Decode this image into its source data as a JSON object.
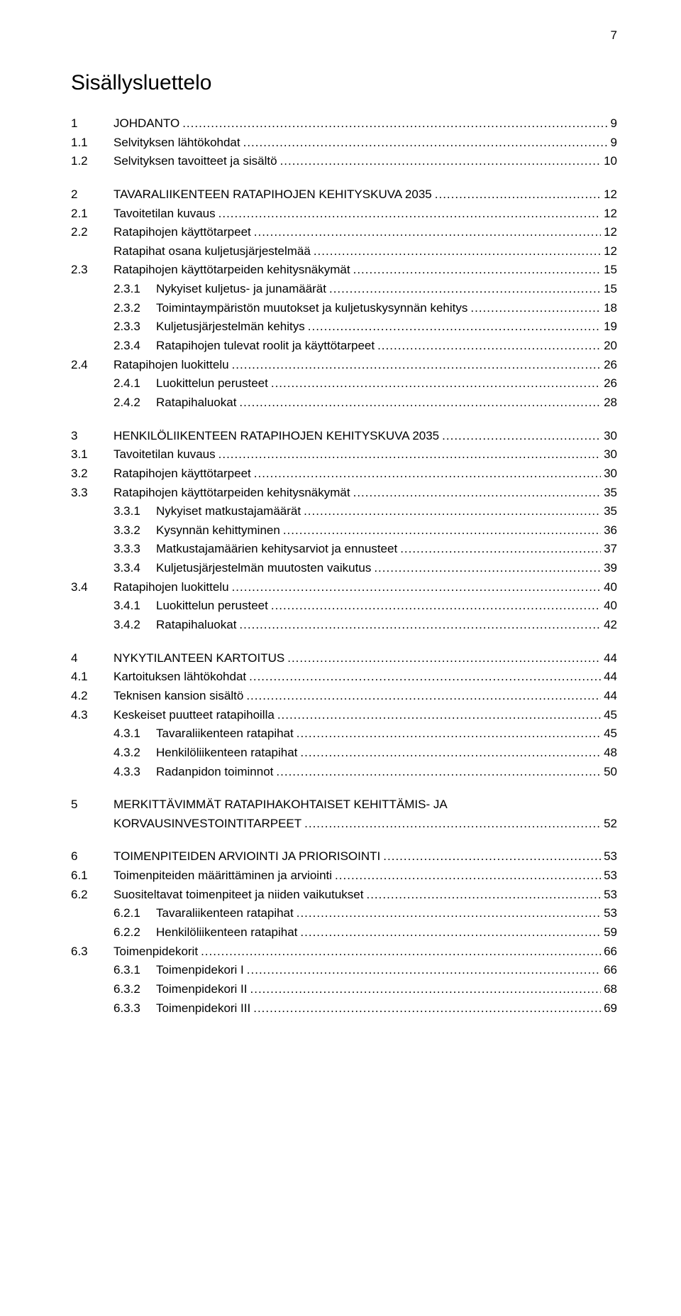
{
  "page_number": "7",
  "title": "Sisällysluettelo",
  "colors": {
    "text": "#000000",
    "background": "#ffffff"
  },
  "typography": {
    "title_fontsize_pt": 22,
    "body_fontsize_pt": 13,
    "font_family": "sans-serif"
  },
  "toc": [
    {
      "entries": [
        {
          "level": 0,
          "num": "1",
          "label": "JOHDANTO",
          "page": "9"
        },
        {
          "level": 1,
          "num": "1.1",
          "label": "Selvityksen lähtökohdat",
          "page": "9"
        },
        {
          "level": 1,
          "num": "1.2",
          "label": "Selvityksen tavoitteet ja sisältö",
          "page": "10"
        }
      ]
    },
    {
      "entries": [
        {
          "level": 0,
          "num": "2",
          "label": "TAVARALIIKENTEEN RATAPIHOJEN KEHITYSKUVA 2035",
          "page": "12"
        },
        {
          "level": 1,
          "num": "2.1",
          "label": "Tavoitetilan kuvaus",
          "page": "12"
        },
        {
          "level": 1,
          "num": "2.2",
          "label": "Ratapihojen käyttötarpeet",
          "page": "12"
        },
        {
          "level": 1,
          "num": "",
          "label": "Ratapihat osana kuljetusjärjestelmää",
          "page": "12"
        },
        {
          "level": 1,
          "num": "2.3",
          "label": "Ratapihojen käyttötarpeiden kehitysnäkymät",
          "page": "15"
        },
        {
          "level": 2,
          "num": "2.3.1",
          "label": "Nykyiset kuljetus- ja junamäärät",
          "page": "15"
        },
        {
          "level": 2,
          "num": "2.3.2",
          "label": "Toimintaympäristön muutokset ja kuljetuskysynnän kehitys",
          "page": "18"
        },
        {
          "level": 2,
          "num": "2.3.3",
          "label": "Kuljetusjärjestelmän kehitys",
          "page": "19"
        },
        {
          "level": 2,
          "num": "2.3.4",
          "label": "Ratapihojen tulevat roolit ja käyttötarpeet",
          "page": "20"
        },
        {
          "level": 1,
          "num": "2.4",
          "label": "Ratapihojen luokittelu",
          "page": "26"
        },
        {
          "level": 2,
          "num": "2.4.1",
          "label": "Luokittelun perusteet",
          "page": "26"
        },
        {
          "level": 2,
          "num": "2.4.2",
          "label": "Ratapihaluokat",
          "page": "28"
        }
      ]
    },
    {
      "entries": [
        {
          "level": 0,
          "num": "3",
          "label": "HENKILÖLIIKENTEEN RATAPIHOJEN KEHITYSKUVA 2035",
          "page": "30"
        },
        {
          "level": 1,
          "num": "3.1",
          "label": "Tavoitetilan kuvaus",
          "page": "30"
        },
        {
          "level": 1,
          "num": "3.2",
          "label": "Ratapihojen käyttötarpeet",
          "page": "30"
        },
        {
          "level": 1,
          "num": "3.3",
          "label": "Ratapihojen käyttötarpeiden kehitysnäkymät",
          "page": "35"
        },
        {
          "level": 2,
          "num": "3.3.1",
          "label": "Nykyiset matkustajamäärät",
          "page": "35"
        },
        {
          "level": 2,
          "num": "3.3.2",
          "label": "Kysynnän kehittyminen",
          "page": "36"
        },
        {
          "level": 2,
          "num": "3.3.3",
          "label": "Matkustajamäärien kehitysarviot ja ennusteet",
          "page": "37"
        },
        {
          "level": 2,
          "num": "3.3.4",
          "label": "Kuljetusjärjestelmän muutosten vaikutus",
          "page": "39"
        },
        {
          "level": 1,
          "num": "3.4",
          "label": "Ratapihojen luokittelu",
          "page": "40"
        },
        {
          "level": 2,
          "num": "3.4.1",
          "label": "Luokittelun perusteet",
          "page": "40"
        },
        {
          "level": 2,
          "num": "3.4.2",
          "label": "Ratapihaluokat",
          "page": "42"
        }
      ]
    },
    {
      "entries": [
        {
          "level": 0,
          "num": "4",
          "label": "NYKYTILANTEEN KARTOITUS",
          "page": "44"
        },
        {
          "level": 1,
          "num": "4.1",
          "label": "Kartoituksen lähtökohdat",
          "page": "44"
        },
        {
          "level": 1,
          "num": "4.2",
          "label": "Teknisen kansion sisältö",
          "page": "44"
        },
        {
          "level": 1,
          "num": "4.3",
          "label": "Keskeiset puutteet ratapihoilla",
          "page": "45"
        },
        {
          "level": 2,
          "num": "4.3.1",
          "label": "Tavaraliikenteen ratapihat",
          "page": "45"
        },
        {
          "level": 2,
          "num": "4.3.2",
          "label": "Henkilöliikenteen ratapihat",
          "page": "48"
        },
        {
          "level": 2,
          "num": "4.3.3",
          "label": "Radanpidon toiminnot",
          "page": "50"
        }
      ]
    },
    {
      "entries": [
        {
          "level": 0,
          "num": "5",
          "label": "MERKITTÄVIMMÄT RATAPIHAKOHTAISET KEHITTÄMIS- JA",
          "page": "",
          "no_leader": true
        },
        {
          "level": 0,
          "num": "",
          "label": "KORVAUSINVESTOINTITARPEET",
          "page": "52"
        }
      ]
    },
    {
      "entries": [
        {
          "level": 0,
          "num": "6",
          "label": "TOIMENPITEIDEN ARVIOINTI JA PRIORISOINTI",
          "page": "53"
        },
        {
          "level": 1,
          "num": "6.1",
          "label": "Toimenpiteiden määrittäminen ja arviointi",
          "page": "53"
        },
        {
          "level": 1,
          "num": "6.2",
          "label": "Suositeltavat toimenpiteet ja niiden vaikutukset",
          "page": "53"
        },
        {
          "level": 2,
          "num": "6.2.1",
          "label": "Tavaraliikenteen ratapihat",
          "page": "53"
        },
        {
          "level": 2,
          "num": "6.2.2",
          "label": "Henkilöliikenteen ratapihat",
          "page": "59"
        },
        {
          "level": 1,
          "num": "6.3",
          "label": "Toimenpidekorit",
          "page": "66"
        },
        {
          "level": 2,
          "num": "6.3.1",
          "label": "Toimenpidekori I",
          "page": "66"
        },
        {
          "level": 2,
          "num": "6.3.2",
          "label": "Toimenpidekori II",
          "page": "68"
        },
        {
          "level": 2,
          "num": "6.3.3",
          "label": "Toimenpidekori III",
          "page": "69"
        }
      ]
    }
  ]
}
